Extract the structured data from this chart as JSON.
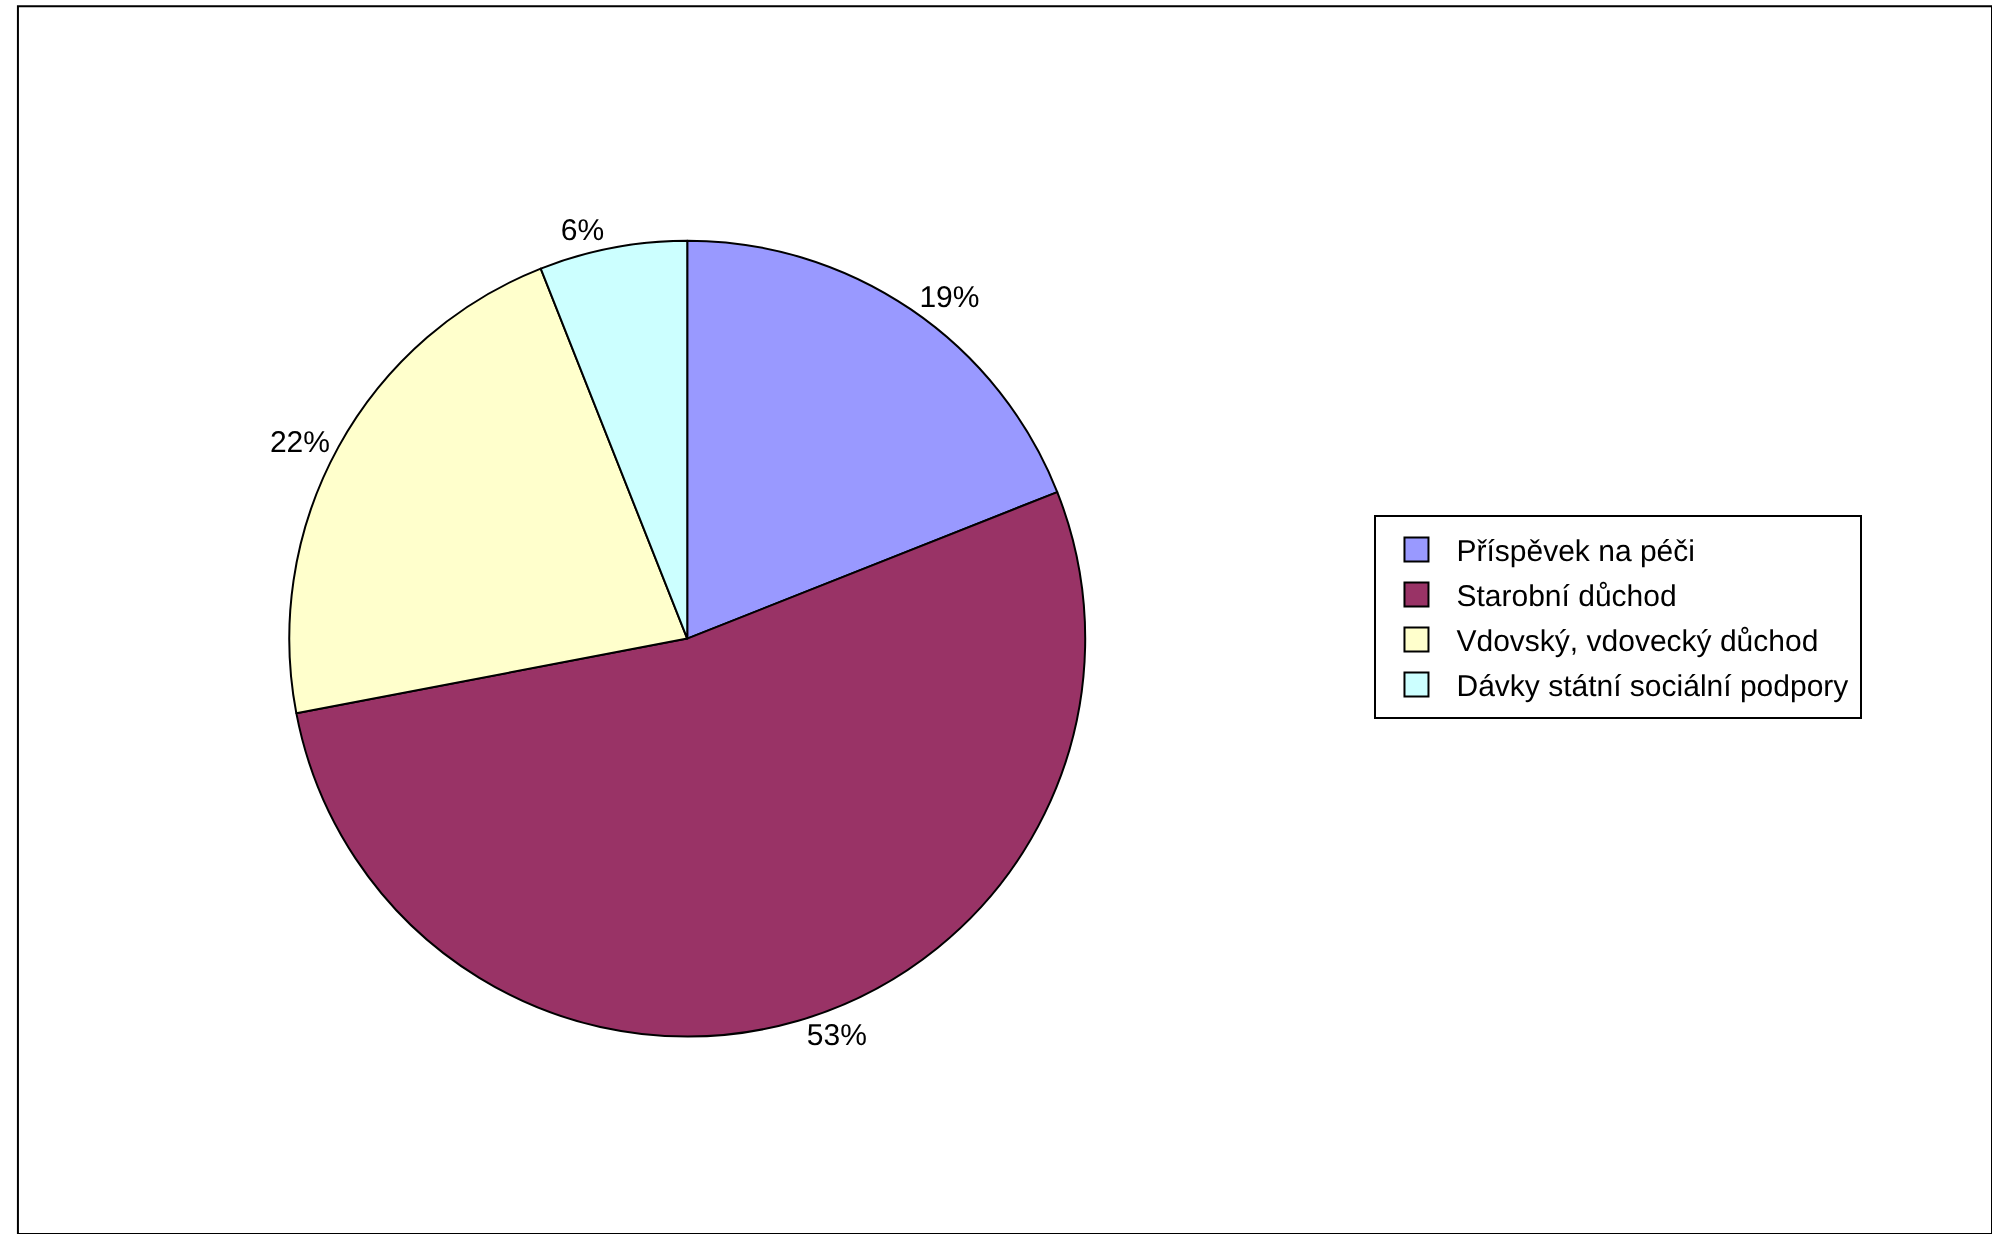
{
  "chart_data": {
    "type": "pie",
    "categories": [
      "Příspěvek na péči",
      "Starobní důchod",
      "Vdovský, vdovecký důchod",
      "Dávky státní sociální podpory"
    ],
    "values": [
      19,
      53,
      22,
      6
    ],
    "colors": [
      "#9999ff",
      "#993366",
      "#ffffcc",
      "#ccffff"
    ],
    "value_labels": [
      "19%",
      "53%",
      "22%",
      "6%"
    ],
    "legend": "right"
  }
}
